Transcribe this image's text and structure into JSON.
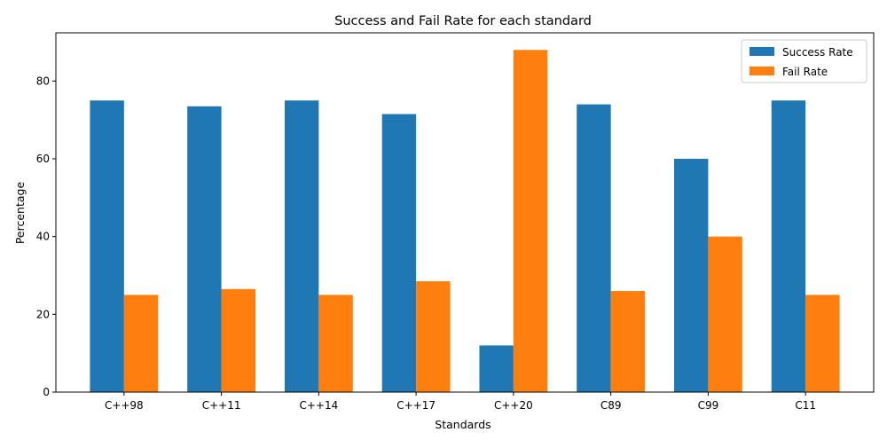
{
  "chart_data": {
    "type": "bar",
    "title": "Success and Fail Rate for each standard",
    "xlabel": "Standards",
    "ylabel": "Percentage",
    "categories": [
      "C++98",
      "C++11",
      "C++14",
      "C++17",
      "C++20",
      "C89",
      "C99",
      "C11"
    ],
    "series": [
      {
        "name": "Success Rate",
        "color": "#1f77b4",
        "values": [
          75,
          73.5,
          75,
          71.5,
          12,
          74,
          60,
          75
        ]
      },
      {
        "name": "Fail Rate",
        "color": "#ff7f0e",
        "values": [
          25,
          26.5,
          25,
          28.5,
          88,
          26,
          40,
          25
        ]
      }
    ],
    "ylim": [
      0,
      92.4
    ],
    "yticks": [
      0,
      20,
      40,
      60,
      80
    ],
    "grid": false,
    "legend_position": "top-right"
  }
}
